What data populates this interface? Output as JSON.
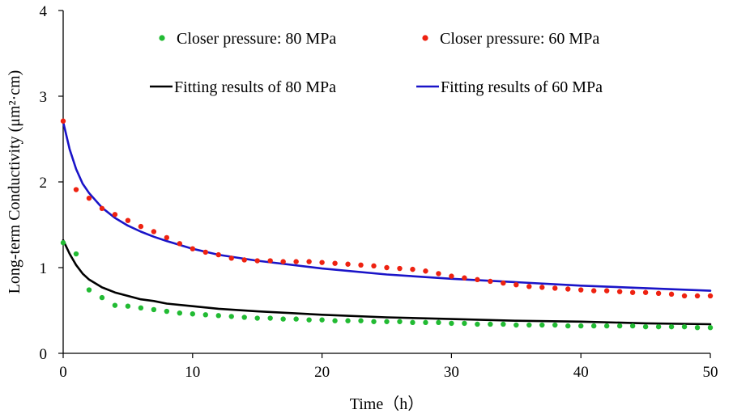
{
  "chart_data": {
    "type": "scatter",
    "title": "",
    "xlabel": "Time（h）",
    "ylabel": "Long-term Conductivity (μm²·cm)",
    "xlim": [
      0,
      50
    ],
    "ylim": [
      0,
      4
    ],
    "xticks": [
      "0",
      "10",
      "20",
      "30",
      "40",
      "50"
    ],
    "yticks": [
      "0",
      "1",
      "2",
      "3",
      "4"
    ],
    "grid": false,
    "legend_position": "top",
    "series": [
      {
        "name": "Closer pressure: 80 MPa",
        "kind": "scatter",
        "color": "#22bb33",
        "x": [
          0,
          1,
          2,
          3,
          4,
          5,
          6,
          7,
          8,
          9,
          10,
          11,
          12,
          13,
          14,
          15,
          16,
          17,
          18,
          19,
          20,
          21,
          22,
          23,
          24,
          25,
          26,
          27,
          28,
          29,
          30,
          31,
          32,
          33,
          34,
          35,
          36,
          37,
          38,
          39,
          40,
          41,
          42,
          43,
          44,
          45,
          46,
          47,
          48,
          49,
          50
        ],
        "y": [
          1.29,
          1.16,
          0.74,
          0.65,
          0.56,
          0.55,
          0.53,
          0.51,
          0.49,
          0.47,
          0.46,
          0.45,
          0.44,
          0.43,
          0.42,
          0.41,
          0.41,
          0.4,
          0.4,
          0.39,
          0.39,
          0.38,
          0.38,
          0.38,
          0.37,
          0.37,
          0.37,
          0.36,
          0.36,
          0.36,
          0.35,
          0.35,
          0.34,
          0.34,
          0.34,
          0.33,
          0.33,
          0.33,
          0.33,
          0.32,
          0.32,
          0.32,
          0.32,
          0.32,
          0.32,
          0.31,
          0.31,
          0.31,
          0.31,
          0.3,
          0.3
        ]
      },
      {
        "name": "Closer pressure: 60 MPa",
        "kind": "scatter",
        "color": "#ee2211",
        "x": [
          0,
          1,
          2,
          3,
          4,
          5,
          6,
          7,
          8,
          9,
          10,
          11,
          12,
          13,
          14,
          15,
          16,
          17,
          18,
          19,
          20,
          21,
          22,
          23,
          24,
          25,
          26,
          27,
          28,
          29,
          30,
          31,
          32,
          33,
          34,
          35,
          36,
          37,
          38,
          39,
          40,
          41,
          42,
          43,
          44,
          45,
          46,
          47,
          48,
          49,
          50
        ],
        "y": [
          2.71,
          1.91,
          1.81,
          1.69,
          1.62,
          1.55,
          1.48,
          1.42,
          1.35,
          1.28,
          1.22,
          1.18,
          1.15,
          1.11,
          1.09,
          1.08,
          1.08,
          1.07,
          1.07,
          1.07,
          1.06,
          1.05,
          1.04,
          1.03,
          1.02,
          1.0,
          0.99,
          0.98,
          0.96,
          0.93,
          0.9,
          0.88,
          0.86,
          0.84,
          0.82,
          0.8,
          0.78,
          0.77,
          0.76,
          0.75,
          0.74,
          0.73,
          0.73,
          0.72,
          0.71,
          0.71,
          0.7,
          0.69,
          0.67,
          0.67,
          0.67
        ]
      },
      {
        "name": "Fitting results of 80 MPa",
        "kind": "line",
        "color": "#000000",
        "x": [
          0,
          0.5,
          1,
          1.5,
          2,
          3,
          4,
          5,
          6,
          7,
          8,
          10,
          12,
          15,
          20,
          25,
          30,
          35,
          40,
          45,
          50
        ],
        "y": [
          1.32,
          1.16,
          1.03,
          0.93,
          0.86,
          0.77,
          0.71,
          0.67,
          0.63,
          0.61,
          0.58,
          0.55,
          0.52,
          0.49,
          0.45,
          0.42,
          0.4,
          0.38,
          0.37,
          0.35,
          0.34
        ]
      },
      {
        "name": "Fitting results of 60 MPa",
        "kind": "line",
        "color": "#1a14c8",
        "x": [
          0,
          0.5,
          1,
          1.5,
          2,
          3,
          4,
          5,
          6,
          7,
          8,
          10,
          12,
          15,
          20,
          25,
          30,
          35,
          40,
          45,
          50
        ],
        "y": [
          2.7,
          2.38,
          2.15,
          1.98,
          1.87,
          1.7,
          1.58,
          1.49,
          1.42,
          1.36,
          1.31,
          1.22,
          1.15,
          1.08,
          0.99,
          0.92,
          0.87,
          0.83,
          0.79,
          0.76,
          0.73
        ]
      }
    ]
  }
}
